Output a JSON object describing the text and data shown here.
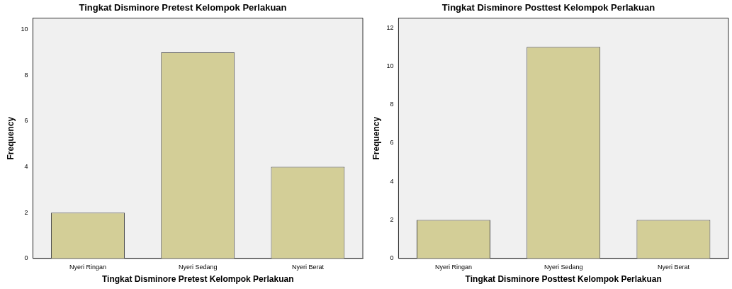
{
  "chart_data": [
    {
      "type": "bar",
      "title": "Tingkat Disminore Pretest Kelompok Perlakuan",
      "xlabel": "Tingkat Disminore Pretest Kelompok Perlakuan",
      "ylabel": "Frequency",
      "categories": [
        "Nyeri Ringan",
        "Nyeri Sedang",
        "Nyeri Berat"
      ],
      "values": [
        2,
        9,
        4
      ],
      "color": "#d3ce97",
      "ylim": [
        0,
        10.5
      ],
      "yticks": [
        0,
        2,
        4,
        6,
        8,
        10
      ],
      "grid": false,
      "legend": false
    },
    {
      "type": "bar",
      "title": "Tingkat Disminore Posttest Kelompok Perlakuan",
      "xlabel": "Tingkat Disminore Posttest Kelompok Perlakuan",
      "ylabel": "Frequency",
      "categories": [
        "Nyeri Ringan",
        "Nyeri Sedang",
        "Nyeri Berat"
      ],
      "values": [
        2,
        11,
        2
      ],
      "color": "#d3ce97",
      "ylim": [
        0,
        12.5
      ],
      "yticks": [
        0,
        2,
        4,
        6,
        8,
        10,
        12
      ],
      "grid": false,
      "legend": false
    }
  ]
}
